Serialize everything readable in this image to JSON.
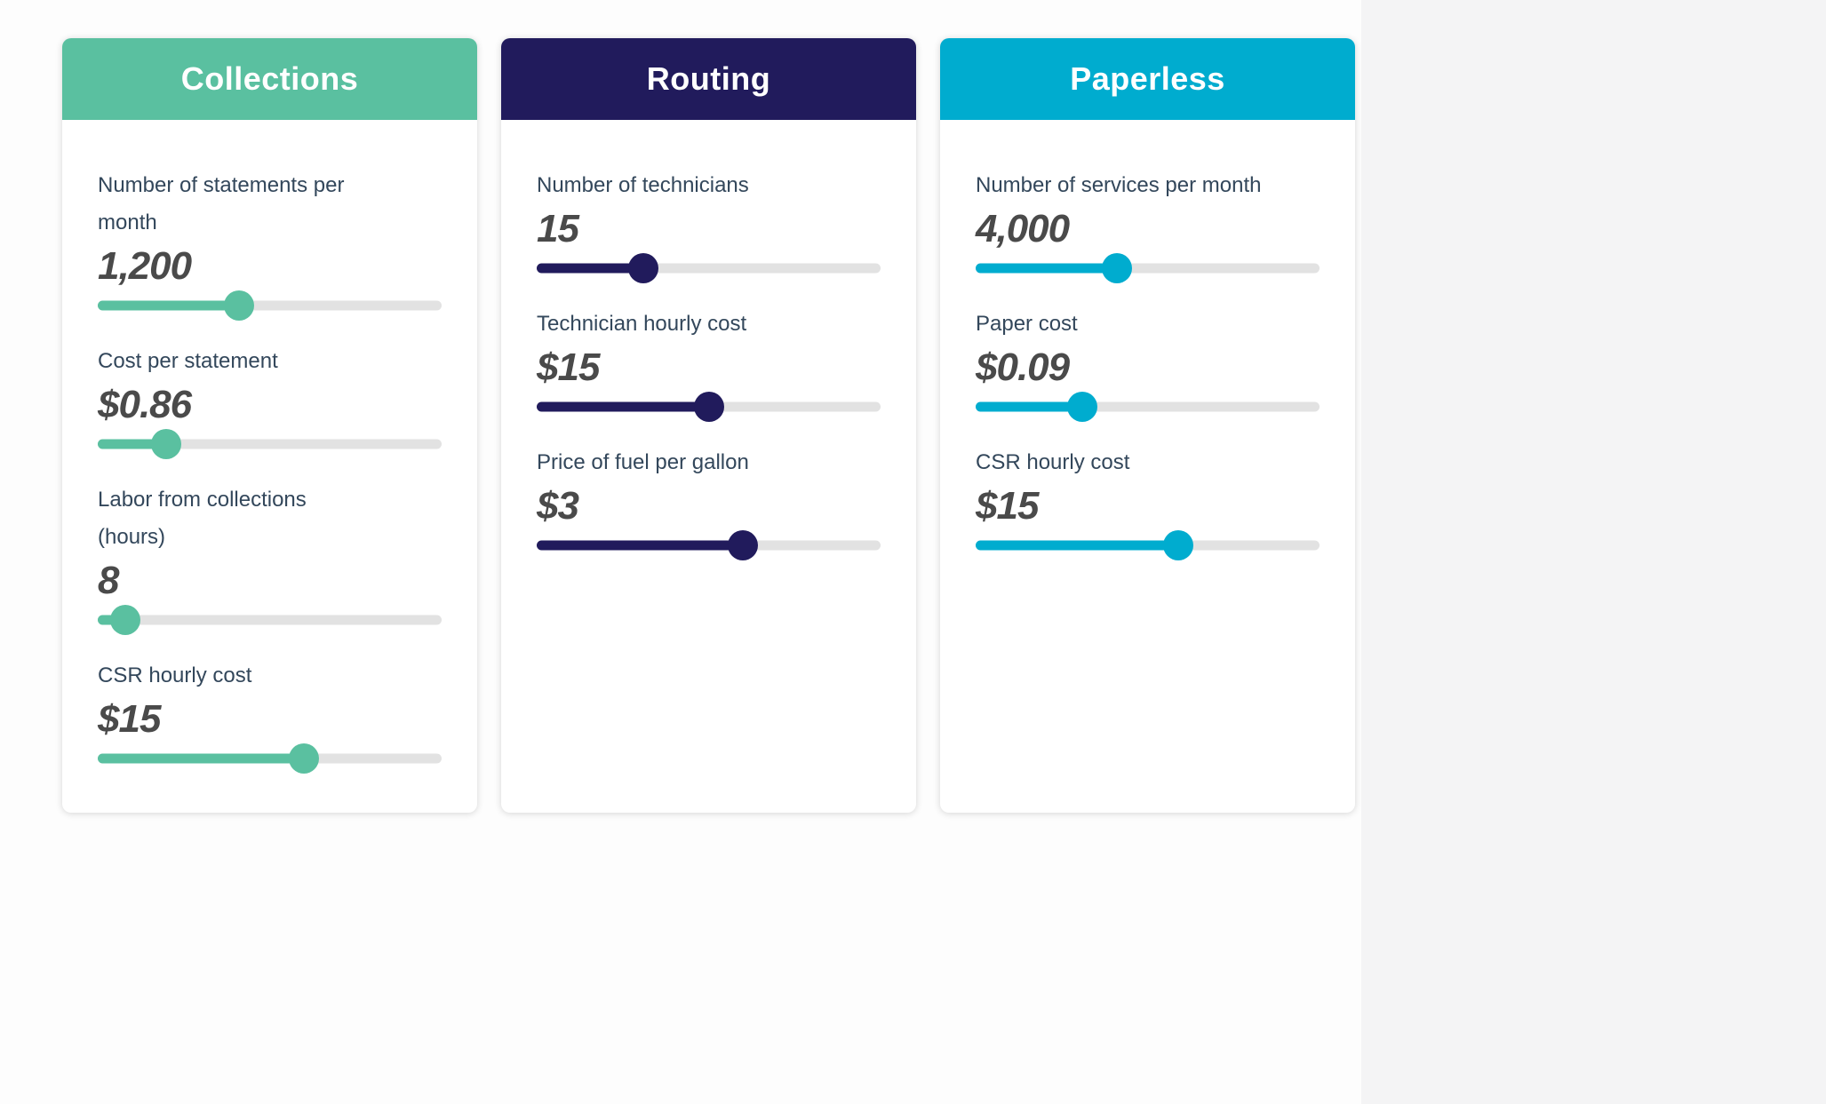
{
  "cards": [
    {
      "title": "Collections",
      "accent": "#5ac0a0",
      "fields": [
        {
          "label": "Number of statements per\nmonth",
          "value": "1,200",
          "percent": 41
        },
        {
          "label": "Cost per statement",
          "value": "$0.86",
          "percent": 20
        },
        {
          "label": "Labor from collections\n(hours)",
          "value": "8",
          "percent": 8
        },
        {
          "label": "CSR hourly cost",
          "value": "$15",
          "percent": 60
        }
      ]
    },
    {
      "title": "Routing",
      "accent": "#211b5c",
      "fields": [
        {
          "label": "Number of technicians",
          "value": "15",
          "percent": 31
        },
        {
          "label": "Technician hourly cost",
          "value": "$15",
          "percent": 50
        },
        {
          "label": "Price of fuel per gallon",
          "value": "$3",
          "percent": 60
        }
      ]
    },
    {
      "title": "Paperless",
      "accent": "#00accf",
      "fields": [
        {
          "label": "Number of services per month",
          "value": "4,000",
          "percent": 41
        },
        {
          "label": "Paper cost",
          "value": "$0.09",
          "percent": 31
        },
        {
          "label": "CSR hourly cost",
          "value": "$15",
          "percent": 59
        }
      ]
    }
  ]
}
